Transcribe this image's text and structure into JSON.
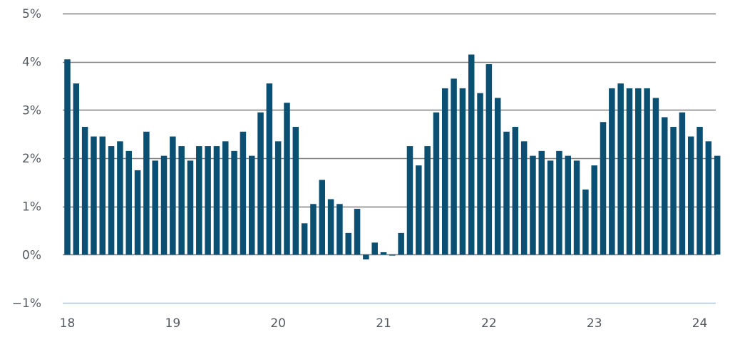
{
  "chart_data": {
    "type": "bar",
    "ylim": [
      -1,
      5
    ],
    "yticks": [
      5,
      4,
      3,
      2,
      1,
      0,
      -1
    ],
    "ytick_labels": [
      "5%",
      "4%",
      "3%",
      "2%",
      "1%",
      "0%",
      "−1%"
    ],
    "xtick_labels": [
      "18",
      "19",
      "20",
      "21",
      "22",
      "23",
      "24"
    ],
    "xtick_positions": [
      0,
      12,
      24,
      36,
      48,
      60,
      72
    ],
    "grid": true,
    "colors": {
      "bar": "#0b4f73",
      "grid": "#7f7f7f",
      "axis": "#a9c8de",
      "text": "#555a60"
    },
    "values": [
      4.05,
      3.55,
      2.65,
      2.45,
      2.45,
      2.25,
      2.35,
      2.15,
      1.75,
      2.55,
      1.95,
      2.05,
      2.45,
      2.25,
      1.95,
      2.25,
      2.25,
      2.25,
      2.35,
      2.15,
      2.55,
      2.05,
      2.95,
      3.55,
      2.35,
      3.15,
      2.65,
      0.65,
      1.05,
      1.55,
      1.15,
      1.05,
      0.45,
      0.95,
      -0.1,
      0.25,
      0.05,
      -0.02,
      0.45,
      2.25,
      1.85,
      2.25,
      2.95,
      3.45,
      3.65,
      3.45,
      4.15,
      3.35,
      3.95,
      3.25,
      2.55,
      2.65,
      2.35,
      2.05,
      2.15,
      1.95,
      2.15,
      2.05,
      1.95,
      1.35,
      1.85,
      2.75,
      3.45,
      3.55,
      3.45,
      3.45,
      3.45,
      3.25,
      2.85,
      2.65,
      2.95,
      2.45,
      2.65,
      2.35,
      2.05
    ]
  }
}
